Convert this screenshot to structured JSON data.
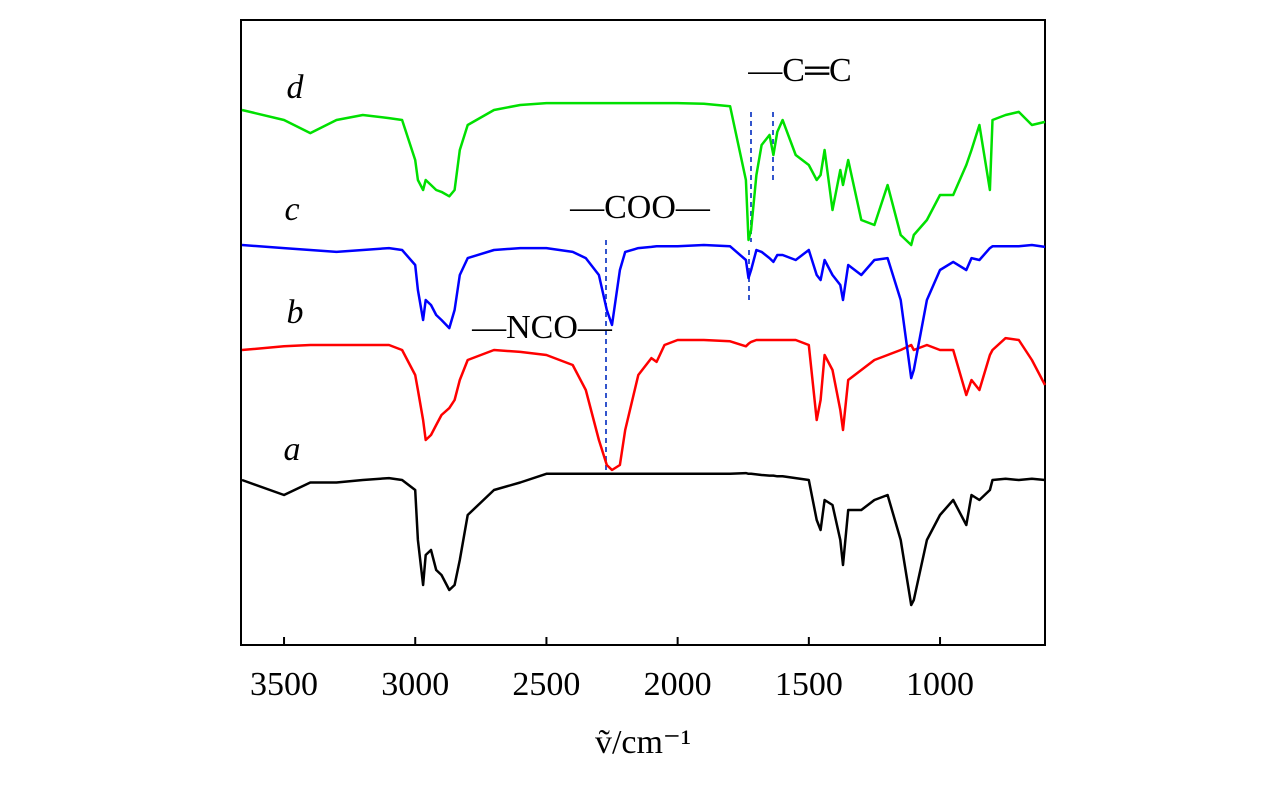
{
  "chart_data": {
    "type": "line",
    "xlabel": "ṽ/cm⁻¹",
    "annotations": [
      "—C═C",
      "—COO—",
      "—NCO—"
    ],
    "xlim": [
      3664,
      600
    ],
    "xticks": [
      3500,
      3000,
      2500,
      2000,
      1500,
      1000
    ],
    "ylim": [
      0,
      100
    ],
    "grid": false,
    "x": [
      3660,
      3500,
      3400,
      3300,
      3200,
      3100,
      3050,
      3000,
      2990,
      2970,
      2960,
      2940,
      2920,
      2900,
      2870,
      2850,
      2830,
      2800,
      2700,
      2600,
      2500,
      2400,
      2350,
      2300,
      2270,
      2250,
      2220,
      2200,
      2150,
      2100,
      2080,
      2050,
      2000,
      1900,
      1800,
      1740,
      1730,
      1720,
      1700,
      1680,
      1650,
      1635,
      1620,
      1600,
      1550,
      1500,
      1470,
      1455,
      1440,
      1410,
      1380,
      1370,
      1350,
      1300,
      1250,
      1200,
      1150,
      1110,
      1100,
      1050,
      1000,
      950,
      900,
      880,
      850,
      810,
      800,
      750,
      700,
      650,
      600
    ],
    "series": [
      {
        "name": "a",
        "color": "#000000",
        "values": [
          26.4,
          24,
          26,
          26,
          26.4,
          26.7,
          26.4,
          24.8,
          16.8,
          9.6,
          14.4,
          15.2,
          12,
          11.2,
          8.8,
          9.6,
          13.6,
          20.8,
          24.8,
          26,
          27.4,
          27.4,
          27.4,
          27.4,
          27.4,
          27.4,
          27.4,
          27.4,
          27.4,
          27.4,
          27.4,
          27.4,
          27.4,
          27.4,
          27.4,
          27.5,
          27.4,
          27.4,
          27.3,
          27.2,
          27.1,
          27.1,
          27,
          27,
          26.7,
          26.4,
          20,
          18.4,
          23.2,
          22.4,
          16.8,
          12.8,
          21.6,
          21.6,
          23.2,
          24,
          16.8,
          6.4,
          7.2,
          16.8,
          20.8,
          23.2,
          19.2,
          24,
          23.2,
          24.8,
          26.4,
          26.6,
          26.4,
          26.6,
          26.4
        ]
      },
      {
        "name": "b",
        "color": "#ff0000",
        "values": [
          47.2,
          47.8,
          48,
          48,
          48,
          48,
          47.2,
          43.2,
          40.8,
          36,
          32.8,
          33.6,
          35.2,
          36.8,
          37.9,
          39.2,
          42.4,
          45.6,
          47.2,
          46.9,
          46.4,
          44.8,
          40.8,
          32.8,
          28.8,
          28,
          28.8,
          34.4,
          43.2,
          45.9,
          45.3,
          48,
          48.8,
          48.8,
          48.6,
          47.8,
          48.2,
          48.5,
          48.8,
          48.8,
          48.8,
          48.8,
          48.8,
          48.8,
          48.8,
          48,
          36,
          39.2,
          46.4,
          44,
          37.6,
          34.4,
          42.4,
          44,
          45.6,
          46.4,
          47.2,
          48,
          47.2,
          48,
          47.2,
          47.2,
          40,
          42.4,
          40.8,
          46.4,
          47.2,
          49.1,
          48.8,
          45.6,
          41.6
        ]
      },
      {
        "name": "c",
        "color": "#0000ff",
        "values": [
          64,
          63.5,
          63.2,
          62.9,
          63.2,
          63.5,
          63.2,
          60.8,
          56.8,
          52,
          55.2,
          54.4,
          52.8,
          52,
          50.7,
          53.6,
          59.2,
          61.9,
          63.2,
          63.5,
          63.5,
          62.9,
          61.9,
          59.2,
          53.6,
          51.2,
          60,
          62.9,
          63.5,
          63.7,
          63.8,
          63.8,
          63.8,
          64,
          63.8,
          61.6,
          58.7,
          60,
          63.2,
          62.9,
          61.9,
          61.3,
          62.4,
          62.4,
          61.6,
          63.2,
          59.2,
          58.4,
          61.6,
          59.2,
          57.6,
          55.2,
          60.8,
          59.2,
          61.6,
          61.9,
          55.2,
          42.7,
          44,
          55.2,
          60,
          61.3,
          60,
          61.9,
          61.6,
          63.5,
          63.8,
          63.8,
          63.8,
          64,
          63.7
        ]
      },
      {
        "name": "d",
        "color": "#00e000",
        "values": [
          85.6,
          84,
          81.9,
          84,
          84.8,
          84.3,
          84,
          77.6,
          74.4,
          72.8,
          74.4,
          73.6,
          72.8,
          72.5,
          71.8,
          72.8,
          79.2,
          83.2,
          85.6,
          86.4,
          86.7,
          86.7,
          86.7,
          86.7,
          86.7,
          86.7,
          86.7,
          86.7,
          86.7,
          86.7,
          86.7,
          86.7,
          86.7,
          86.6,
          86.2,
          74.4,
          64.8,
          66.4,
          75.2,
          80,
          81.6,
          78.4,
          82.1,
          84,
          78.4,
          76.8,
          74.4,
          75.2,
          79.2,
          69.6,
          76,
          73.6,
          77.6,
          68,
          67.2,
          73.6,
          65.6,
          64,
          65.6,
          68,
          72,
          72,
          76.8,
          79.2,
          83.2,
          72.8,
          84,
          84.8,
          85.3,
          83.2,
          83.7
        ]
      }
    ]
  }
}
